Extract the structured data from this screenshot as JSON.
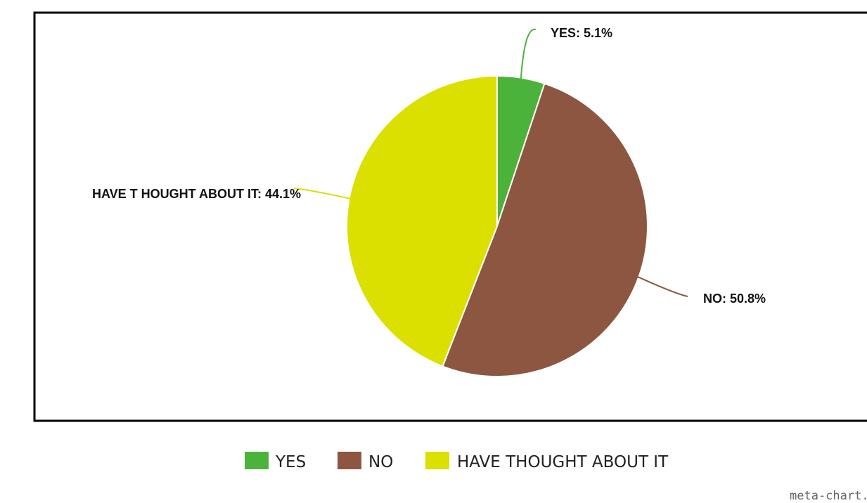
{
  "chart_data": {
    "type": "pie",
    "slices": [
      {
        "label": "YES",
        "value": 5.1,
        "display": "YES: 5.1%",
        "color": "#4cb33a"
      },
      {
        "label": "NO",
        "value": 50.8,
        "display": "NO: 50.8%",
        "color": "#8c5640"
      },
      {
        "label": "HAVE THOUGHT ABOUT IT",
        "value": 44.1,
        "display": "HAVE T HOUGHT ABOUT IT: 44.1%",
        "color": "#dbe000"
      }
    ],
    "legend_position": "bottom-center"
  },
  "credit": "meta-chart."
}
